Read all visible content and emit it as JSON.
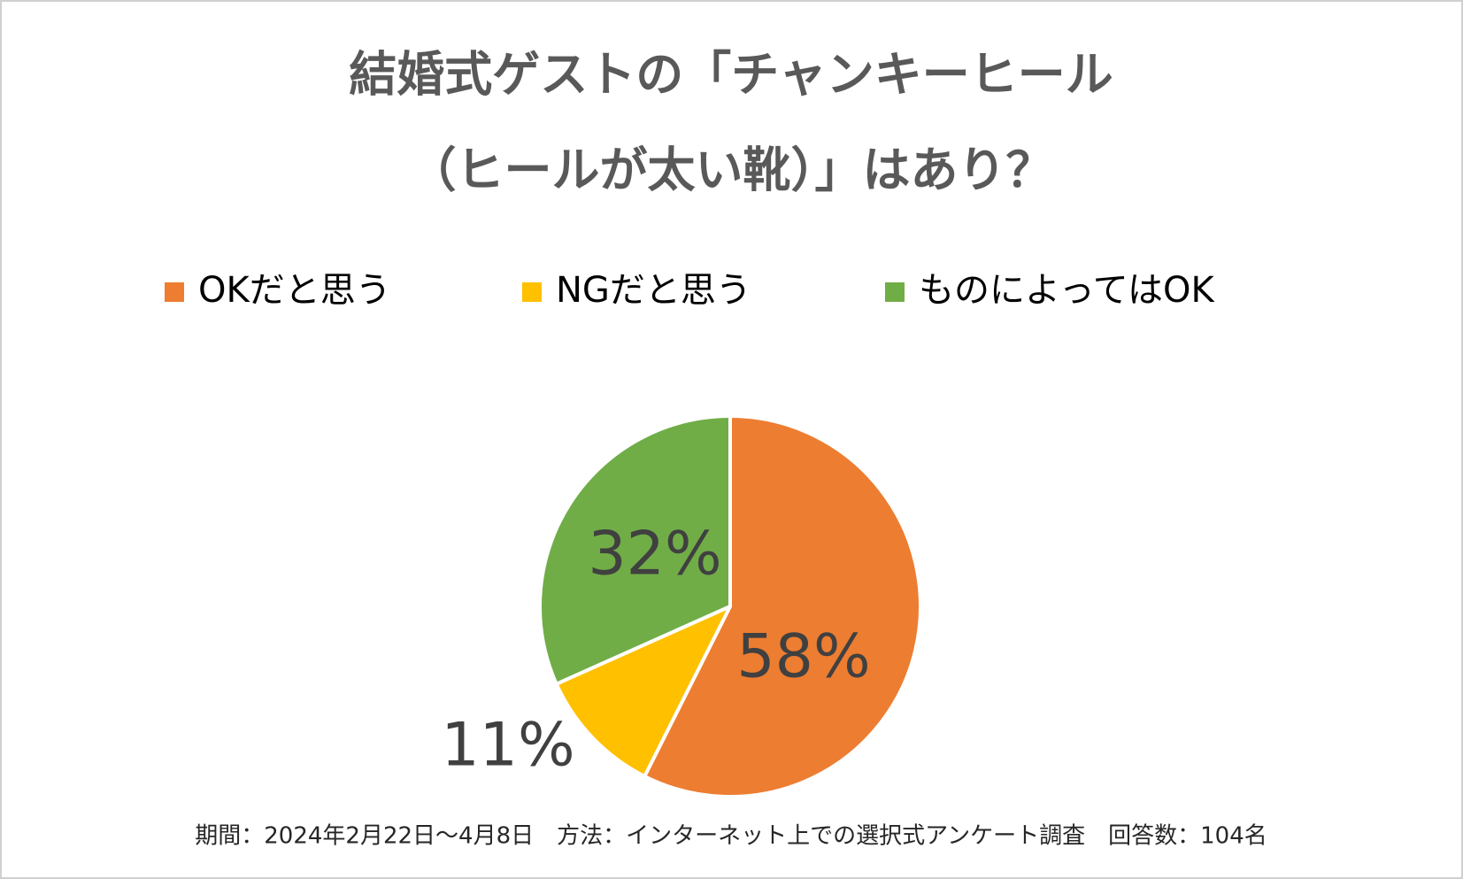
{
  "chart_data": {
    "type": "pie",
    "title": [
      "結婚式ゲストの「チャンキーヒール",
      "（ヒールが太い靴）」はあり？"
    ],
    "categories": [
      "OKだと思う",
      "NGだと思う",
      "ものによってはOK"
    ],
    "values": [
      58,
      11,
      32
    ],
    "value_labels": [
      "58%",
      "11%",
      "32%"
    ],
    "colors": [
      "#ed7d31",
      "#ffc000",
      "#70ad47"
    ],
    "legend": "top",
    "note": "期間：2024年2月22日～4月8日　方法：インターネット上での選択式アンケート調査　回答数：104名"
  }
}
